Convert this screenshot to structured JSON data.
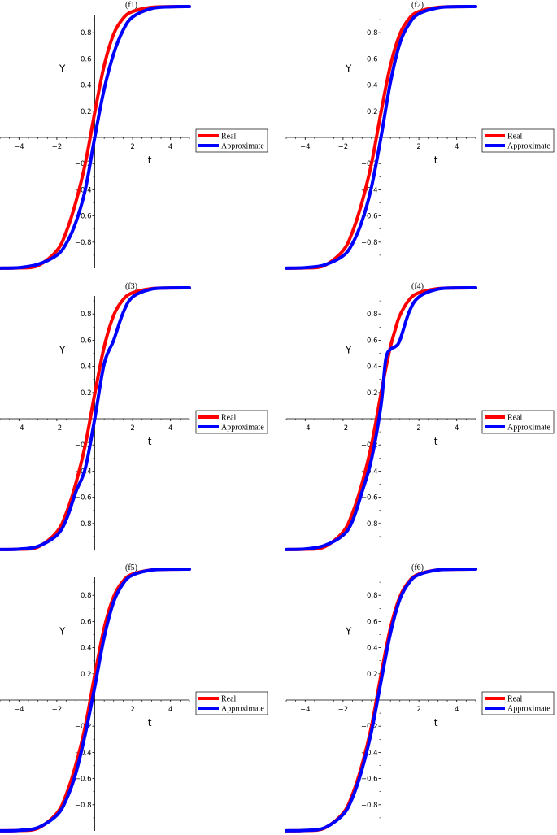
{
  "chart_data": [
    {
      "type": "line",
      "title": "(f1)",
      "xlabel": "t",
      "ylabel": "Y",
      "xlim": [
        -5,
        5
      ],
      "ylim": [
        -1,
        1
      ],
      "xticks": [
        "−4",
        "−2",
        "0",
        "2",
        "4"
      ],
      "yticks": [
        "0.8",
        "0.6",
        "0.4",
        "0.2",
        "−0.2",
        "−0.4",
        "−0.6",
        "−0.8"
      ],
      "legend_position": "right",
      "x": [
        -5,
        -4,
        -3,
        -2,
        -1.5,
        -1,
        -0.5,
        0,
        0.5,
        1,
        1.5,
        2,
        3,
        4,
        5
      ],
      "series": [
        {
          "name": "Real",
          "color": "#ff0000",
          "values": [
            -0.999,
            -0.997,
            -0.98,
            -0.865,
            -0.72,
            -0.495,
            -0.2,
            0.19,
            0.55,
            0.79,
            0.91,
            0.962,
            0.994,
            0.999,
            1.0
          ]
        },
        {
          "name": "Approximate",
          "color": "#0000ff",
          "values": [
            -0.999,
            -0.995,
            -0.97,
            -0.9,
            -0.81,
            -0.65,
            -0.4,
            0.0,
            0.37,
            0.64,
            0.82,
            0.92,
            0.985,
            0.998,
            1.0
          ]
        }
      ]
    },
    {
      "type": "line",
      "title": "(f2)",
      "xlabel": "t",
      "ylabel": "Y",
      "xlim": [
        -5,
        5
      ],
      "ylim": [
        -1,
        1
      ],
      "xticks": [
        "−4",
        "−2",
        "0",
        "2",
        "4"
      ],
      "yticks": [
        "0.8",
        "0.6",
        "0.4",
        "0.2",
        "−0.2",
        "−0.4",
        "−0.6",
        "−0.8"
      ],
      "legend_position": "right",
      "x": [
        -5,
        -4,
        -3,
        -2,
        -1.5,
        -1,
        -0.5,
        0,
        0.5,
        1,
        1.5,
        2,
        3,
        4,
        5
      ],
      "series": [
        {
          "name": "Real",
          "color": "#ff0000",
          "values": [
            -0.999,
            -0.997,
            -0.98,
            -0.865,
            -0.72,
            -0.495,
            -0.2,
            0.19,
            0.55,
            0.79,
            0.91,
            0.962,
            0.994,
            0.999,
            1.0
          ]
        },
        {
          "name": "Approximate",
          "color": "#0000ff",
          "values": [
            -0.999,
            -0.995,
            -0.975,
            -0.905,
            -0.81,
            -0.64,
            -0.38,
            0.0,
            0.42,
            0.72,
            0.87,
            0.945,
            0.99,
            0.999,
            1.0
          ]
        }
      ]
    },
    {
      "type": "line",
      "title": "(f3)",
      "xlabel": "t",
      "ylabel": "Y",
      "xlim": [
        -5,
        5
      ],
      "ylim": [
        -1,
        1
      ],
      "xticks": [
        "−4",
        "−2",
        "0",
        "2",
        "4"
      ],
      "yticks": [
        "0.8",
        "0.6",
        "0.4",
        "0.2",
        "−0.2",
        "−0.4",
        "−0.6",
        "−0.8"
      ],
      "legend_position": "right",
      "x": [
        -5,
        -4,
        -3,
        -2,
        -1.5,
        -1,
        -0.5,
        0,
        0.5,
        1,
        1.5,
        2,
        3,
        4,
        5
      ],
      "series": [
        {
          "name": "Real",
          "color": "#ff0000",
          "values": [
            -0.999,
            -0.997,
            -0.98,
            -0.865,
            -0.72,
            -0.495,
            -0.2,
            0.19,
            0.55,
            0.79,
            0.91,
            0.962,
            0.994,
            0.999,
            1.0
          ]
        },
        {
          "name": "Approximate",
          "color": "#0000ff",
          "values": [
            -0.999,
            -0.996,
            -0.975,
            -0.89,
            -0.77,
            -0.56,
            -0.38,
            0.0,
            0.42,
            0.6,
            0.81,
            0.93,
            0.99,
            0.999,
            1.0
          ]
        }
      ]
    },
    {
      "type": "line",
      "title": "(f4)",
      "xlabel": "t",
      "ylabel": "Y",
      "xlim": [
        -5,
        5
      ],
      "ylim": [
        -1,
        1
      ],
      "xticks": [
        "−4",
        "−2",
        "0",
        "2",
        "4"
      ],
      "yticks": [
        "0.8",
        "0.6",
        "0.4",
        "0.2",
        "−0.2",
        "−0.4",
        "−0.6",
        "−0.8"
      ],
      "legend_position": "right",
      "x": [
        -5,
        -4,
        -3,
        -2,
        -1.5,
        -1,
        -0.5,
        0,
        0.25,
        0.5,
        0.75,
        1,
        1.5,
        2,
        3,
        4,
        5
      ],
      "series": [
        {
          "name": "Real",
          "color": "#ff0000",
          "values": [
            -0.999,
            -0.997,
            -0.98,
            -0.865,
            -0.72,
            -0.495,
            -0.2,
            0.19,
            0.38,
            0.55,
            0.68,
            0.79,
            0.91,
            0.962,
            0.994,
            0.999,
            1.0
          ]
        },
        {
          "name": "Approximate",
          "color": "#0000ff",
          "values": [
            -0.999,
            -0.995,
            -0.97,
            -0.89,
            -0.78,
            -0.56,
            -0.31,
            0.1,
            0.45,
            0.53,
            0.55,
            0.6,
            0.82,
            0.93,
            0.99,
            0.999,
            1.0
          ]
        }
      ]
    },
    {
      "type": "line",
      "title": "(f5)",
      "xlabel": "t",
      "ylabel": "Y",
      "xlim": [
        -5,
        5
      ],
      "ylim": [
        -1,
        1
      ],
      "xticks": [
        "−4",
        "−2",
        "0",
        "2",
        "4"
      ],
      "yticks": [
        "0.8",
        "0.6",
        "0.4",
        "0.2",
        "−0.2",
        "−0.4",
        "−0.6",
        "−0.8"
      ],
      "legend_position": "right",
      "x": [
        -5,
        -4,
        -3,
        -2,
        -1.5,
        -1,
        -0.5,
        0,
        0.5,
        1,
        1.5,
        2,
        3,
        4,
        5
      ],
      "series": [
        {
          "name": "Real",
          "color": "#ff0000",
          "values": [
            -0.999,
            -0.997,
            -0.98,
            -0.865,
            -0.72,
            -0.495,
            -0.2,
            0.19,
            0.55,
            0.79,
            0.91,
            0.962,
            0.994,
            0.999,
            1.0
          ]
        },
        {
          "name": "Approximate",
          "color": "#0000ff",
          "values": [
            -0.999,
            -0.996,
            -0.975,
            -0.88,
            -0.76,
            -0.56,
            -0.26,
            0.1,
            0.48,
            0.75,
            0.89,
            0.955,
            0.993,
            0.999,
            1.0
          ]
        }
      ]
    },
    {
      "type": "line",
      "title": "(f6)",
      "xlabel": "t",
      "ylabel": "Y",
      "xlim": [
        -5,
        5
      ],
      "ylim": [
        -1,
        1
      ],
      "xticks": [
        "−4",
        "−2",
        "0",
        "2",
        "4"
      ],
      "yticks": [
        "0.8",
        "0.6",
        "0.4",
        "0.2",
        "−0.2",
        "−0.4",
        "−0.6",
        "−0.8"
      ],
      "legend_position": "right",
      "x": [
        -5,
        -4,
        -3,
        -2,
        -1.5,
        -1,
        -0.5,
        0,
        0.5,
        1,
        1.5,
        2,
        3,
        4,
        5
      ],
      "series": [
        {
          "name": "Real",
          "color": "#ff0000",
          "values": [
            -0.999,
            -0.997,
            -0.98,
            -0.865,
            -0.72,
            -0.495,
            -0.2,
            0.19,
            0.55,
            0.79,
            0.91,
            0.962,
            0.994,
            0.999,
            1.0
          ]
        },
        {
          "name": "Approximate",
          "color": "#0000ff",
          "values": [
            -0.999,
            -0.996,
            -0.978,
            -0.875,
            -0.745,
            -0.53,
            -0.24,
            0.14,
            0.51,
            0.77,
            0.9,
            0.958,
            0.994,
            0.999,
            1.0
          ]
        }
      ]
    }
  ]
}
